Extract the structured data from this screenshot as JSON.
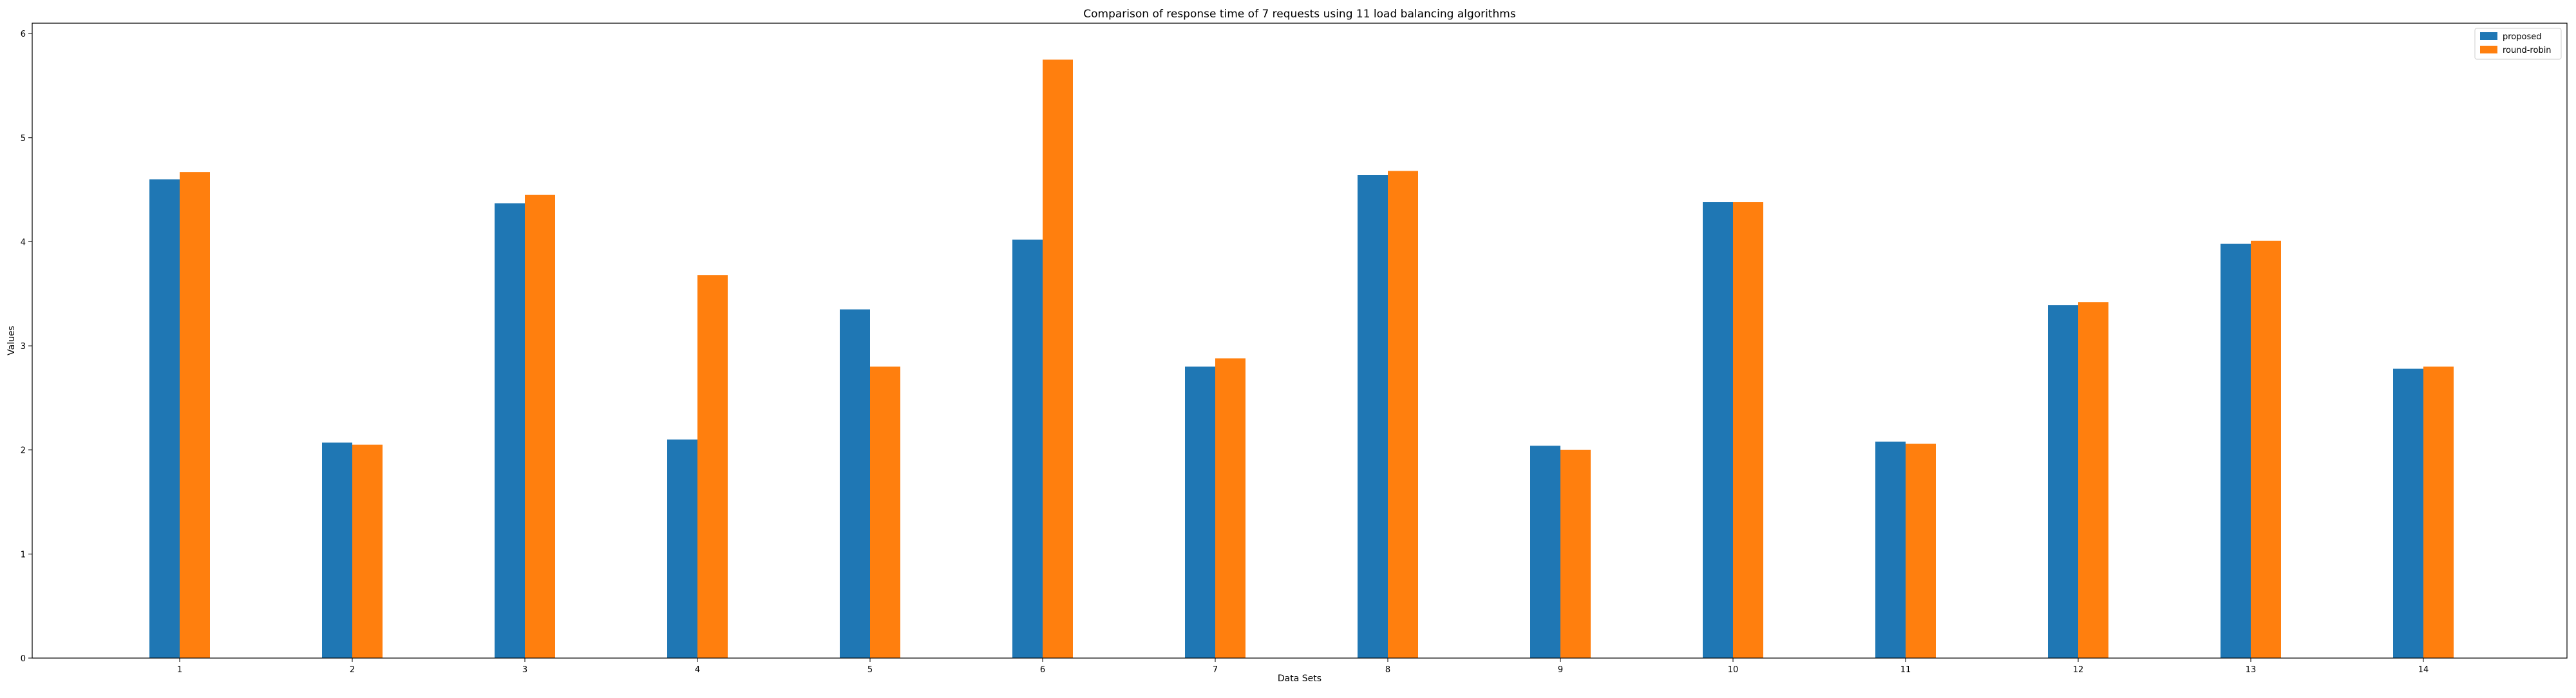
{
  "chart_data": {
    "type": "bar",
    "title": "Comparison of response time of 7 requests using 11 load balancing algorithms",
    "xlabel": "Data Sets",
    "ylabel": "Values",
    "categories": [
      "1",
      "2",
      "3",
      "4",
      "5",
      "6",
      "7",
      "8",
      "9",
      "10",
      "11",
      "12",
      "13",
      "14"
    ],
    "series": [
      {
        "name": "proposed",
        "color": "#1f77b4",
        "values": [
          4.6,
          2.07,
          4.37,
          2.1,
          3.35,
          4.02,
          2.8,
          4.64,
          2.04,
          4.38,
          2.08,
          3.39,
          3.98,
          2.78
        ]
      },
      {
        "name": "round-robin",
        "color": "#ff7f0e",
        "values": [
          4.67,
          2.05,
          4.45,
          3.68,
          2.8,
          5.75,
          2.88,
          4.68,
          2.0,
          4.38,
          2.06,
          3.42,
          4.01,
          2.8
        ]
      }
    ],
    "ylim": [
      0,
      6.1
    ],
    "yticks": [
      "0",
      "1",
      "2",
      "3",
      "4",
      "5",
      "6"
    ],
    "grid": false,
    "legend_position": "top-right"
  }
}
